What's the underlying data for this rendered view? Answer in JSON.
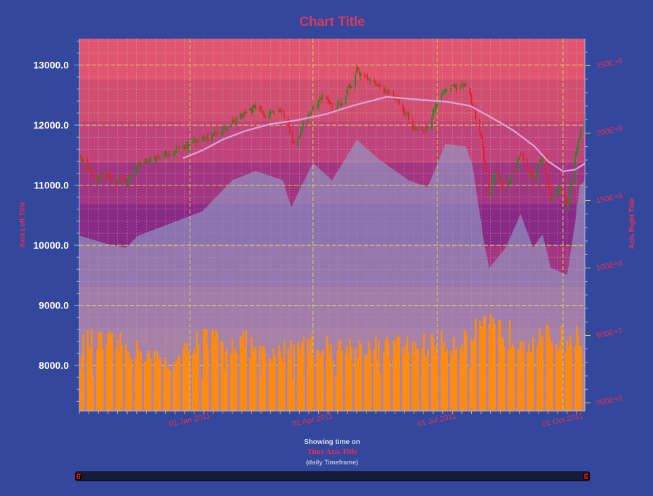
{
  "chart_data": {
    "type": "candlestick",
    "title": "Chart Title",
    "xlabel": "Time Axis Title",
    "x_prefix": "Showing time on",
    "x_suffix": "(daily Timeframe)",
    "ylabel_left": "Axis Left Title",
    "ylabel_right": "Axis Right Title",
    "left_axis": {
      "range": [
        7240,
        13440
      ],
      "ticks": [
        "8000.0",
        "9000.0",
        "10000.0",
        "11000.0",
        "12000.0",
        "13000.0"
      ]
    },
    "right_axis": {
      "range": [
        -60000000,
        2700000000
      ],
      "ticks": [
        "000E+0",
        "500E+7",
        "100E+8",
        "150E+8",
        "200E+8",
        "250E+8"
      ]
    },
    "x_range": [
      "2010-10-12",
      "2011-10-17"
    ],
    "x_ticks": [
      "01 Jan 2011",
      "01 Apr 2011",
      "01 Jul 2011",
      "01 Oct 2011"
    ],
    "grid": true,
    "price_anchors": [
      [
        "2010-10-12",
        11500
      ],
      [
        "2010-10-22",
        11150
      ],
      [
        "2010-11-05",
        11100
      ],
      [
        "2010-11-16",
        11050
      ],
      [
        "2010-11-24",
        11350
      ],
      [
        "2010-12-06",
        11450
      ],
      [
        "2010-12-20",
        11580
      ],
      [
        "2011-01-05",
        11720
      ],
      [
        "2011-01-20",
        11850
      ],
      [
        "2011-02-01",
        12050
      ],
      [
        "2011-02-18",
        12300
      ],
      [
        "2011-02-25",
        12150
      ],
      [
        "2011-03-10",
        12250
      ],
      [
        "2011-03-16",
        11850
      ],
      [
        "2011-03-18",
        11650
      ],
      [
        "2011-03-28",
        12150
      ],
      [
        "2011-04-08",
        12450
      ],
      [
        "2011-04-18",
        12250
      ],
      [
        "2011-04-29",
        12700
      ],
      [
        "2011-05-03",
        12900
      ],
      [
        "2011-05-10",
        12750
      ],
      [
        "2011-05-20",
        12600
      ],
      [
        "2011-05-31",
        12450
      ],
      [
        "2011-06-08",
        12200
      ],
      [
        "2011-06-15",
        11900
      ],
      [
        "2011-06-24",
        11950
      ],
      [
        "2011-06-30",
        12350
      ],
      [
        "2011-07-07",
        12600
      ],
      [
        "2011-07-18",
        12650
      ],
      [
        "2011-07-22",
        12700
      ],
      [
        "2011-07-27",
        12300
      ],
      [
        "2011-08-02",
        11800
      ],
      [
        "2011-08-04",
        11400
      ],
      [
        "2011-08-08",
        10800
      ],
      [
        "2011-08-12",
        11250
      ],
      [
        "2011-08-19",
        10900
      ],
      [
        "2011-08-31",
        11500
      ],
      [
        "2011-09-09",
        11100
      ],
      [
        "2011-09-16",
        11500
      ],
      [
        "2011-09-22",
        10750
      ],
      [
        "2011-09-30",
        10950
      ],
      [
        "2011-10-04",
        10650
      ],
      [
        "2011-10-07",
        11100
      ],
      [
        "2011-10-10",
        11500
      ],
      [
        "2011-10-13",
        11800
      ],
      [
        "2011-10-17",
        12150
      ]
    ],
    "moving_average": [
      [
        "2010-12-27",
        11450
      ],
      [
        "2011-01-10",
        11580
      ],
      [
        "2011-01-25",
        11760
      ],
      [
        "2011-02-10",
        11900
      ],
      [
        "2011-03-01",
        12020
      ],
      [
        "2011-03-20",
        12080
      ],
      [
        "2011-04-10",
        12180
      ],
      [
        "2011-05-01",
        12330
      ],
      [
        "2011-05-25",
        12470
      ],
      [
        "2011-06-20",
        12420
      ],
      [
        "2011-07-08",
        12390
      ],
      [
        "2011-07-25",
        12320
      ],
      [
        "2011-08-10",
        12120
      ],
      [
        "2011-08-25",
        11920
      ],
      [
        "2011-09-10",
        11650
      ],
      [
        "2011-09-20",
        11400
      ],
      [
        "2011-10-01",
        11230
      ],
      [
        "2011-10-10",
        11260
      ],
      [
        "2011-10-17",
        11360
      ]
    ],
    "area_series": [
      [
        "2010-10-12",
        1240000000
      ],
      [
        "2010-11-01",
        1180000000
      ],
      [
        "2010-11-15",
        1150000000
      ],
      [
        "2010-11-24",
        1240000000
      ],
      [
        "2010-12-15",
        1320000000
      ],
      [
        "2011-01-10",
        1420000000
      ],
      [
        "2011-02-01",
        1650000000
      ],
      [
        "2011-02-18",
        1720000000
      ],
      [
        "2011-03-10",
        1650000000
      ],
      [
        "2011-03-16",
        1450000000
      ],
      [
        "2011-04-01",
        1780000000
      ],
      [
        "2011-04-15",
        1650000000
      ],
      [
        "2011-05-03",
        1950000000
      ],
      [
        "2011-05-20",
        1800000000
      ],
      [
        "2011-06-10",
        1650000000
      ],
      [
        "2011-06-24",
        1600000000
      ],
      [
        "2011-07-07",
        1920000000
      ],
      [
        "2011-07-22",
        1900000000
      ],
      [
        "2011-07-27",
        1750000000
      ],
      [
        "2011-08-04",
        1200000000
      ],
      [
        "2011-08-08",
        1000000000
      ],
      [
        "2011-08-20",
        1150000000
      ],
      [
        "2011-08-31",
        1400000000
      ],
      [
        "2011-09-09",
        1150000000
      ],
      [
        "2011-09-16",
        1250000000
      ],
      [
        "2011-09-22",
        1000000000
      ],
      [
        "2011-10-04",
        950000000
      ],
      [
        "2011-10-10",
        1350000000
      ],
      [
        "2011-10-13",
        1600000000
      ],
      [
        "2011-10-17",
        1650000000
      ]
    ],
    "volume_anchors": [
      [
        "2010-10-12",
        470000000
      ],
      [
        "2010-11-15",
        430000000
      ],
      [
        "2010-12-20",
        280000000
      ],
      [
        "2011-01-05",
        480000000
      ],
      [
        "2011-02-10",
        460000000
      ],
      [
        "2011-03-01",
        330000000
      ],
      [
        "2011-03-20",
        460000000
      ],
      [
        "2011-04-10",
        420000000
      ],
      [
        "2011-05-10",
        420000000
      ],
      [
        "2011-06-10",
        430000000
      ],
      [
        "2011-07-10",
        450000000
      ],
      [
        "2011-08-08",
        560000000
      ],
      [
        "2011-09-01",
        490000000
      ],
      [
        "2011-10-17",
        480000000
      ]
    ],
    "bands": [
      "#e05670",
      "#d04f70",
      "#c04479",
      "#a33680",
      "#8a2a87",
      "#a33680",
      "#c04479",
      "#d04f70",
      "#e05670"
    ]
  },
  "colors": {
    "background": "#33479c",
    "title": "#dc3a5c",
    "up_candle": "#1e8c1e",
    "down_candle": "#e8202a",
    "volume": "#ff8c10",
    "moving_average": "#dba0d6",
    "area": "#8fa0c8",
    "major_grid": "#d8e04a",
    "minor_grid": "#e8e8f8",
    "left_tick_text": "#ffffff",
    "right_tick_text": "#e8305a"
  }
}
